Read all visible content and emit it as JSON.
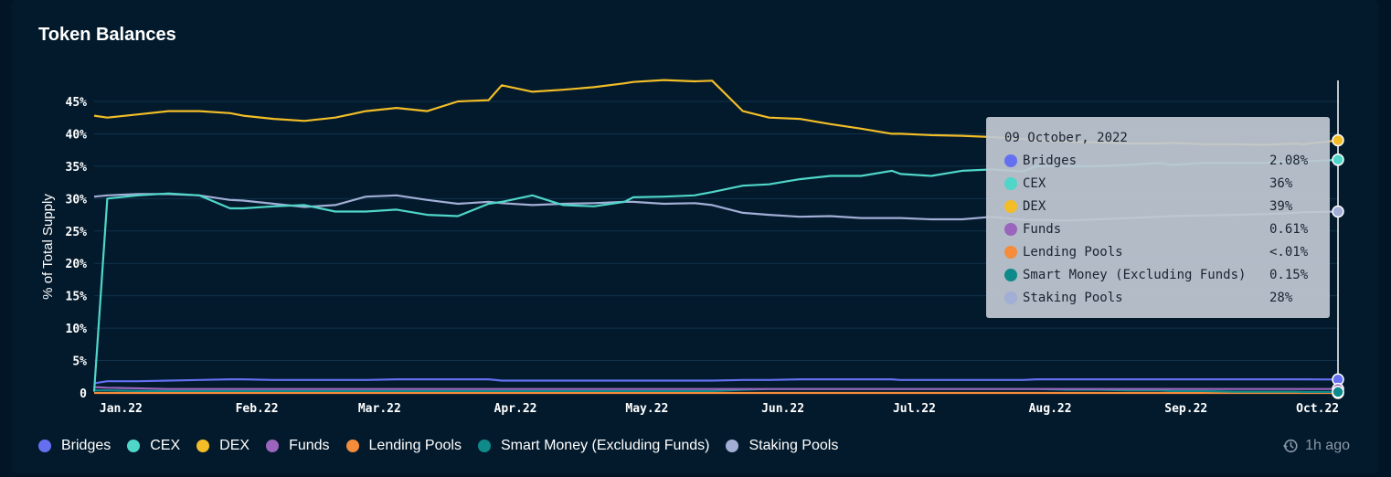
{
  "card": {
    "title": "Token Balances"
  },
  "footer": {
    "updated": "1h ago"
  },
  "tooltip": {
    "date": "09 October, 2022",
    "rows": [
      {
        "name": "Bridges",
        "value": "2.08%",
        "color": "#6470f0"
      },
      {
        "name": "CEX",
        "value": "36%",
        "color": "#4fd6c8"
      },
      {
        "name": "DEX",
        "value": "39%",
        "color": "#f2bd27"
      },
      {
        "name": "Funds",
        "value": "0.61%",
        "color": "#9b64bd"
      },
      {
        "name": "Lending Pools",
        "value": "<.01%",
        "color": "#f48c3c"
      },
      {
        "name": "Smart Money (Excluding Funds)",
        "value": "0.15%",
        "color": "#0e8a8a"
      },
      {
        "name": "Staking Pools",
        "value": "28%",
        "color": "#a2aed6"
      }
    ]
  },
  "chart_data": {
    "type": "line",
    "title": "Token Balances",
    "ylabel": "% of Total Supply",
    "xlabel": "",
    "ylim": [
      0,
      47
    ],
    "y_ticks": [
      "0",
      "5%",
      "10%",
      "15%",
      "20%",
      "25%",
      "30%",
      "35%",
      "40%",
      "45%"
    ],
    "y_tick_values": [
      0,
      5,
      10,
      15,
      20,
      25,
      30,
      35,
      40,
      45
    ],
    "x_ticks": [
      "Jan.22",
      "Feb.22",
      "Mar.22",
      "Apr.22",
      "May.22",
      "Jun.22",
      "Jul.22",
      "Aug.22",
      "Sep.22",
      "Oct.22"
    ],
    "x_tick_values": [
      0,
      31,
      59,
      90,
      120,
      151,
      181,
      212,
      243,
      273
    ],
    "x_range_days": [
      -3,
      281
    ],
    "grid": true,
    "legend_position": "bottom-left",
    "x_days": [
      -3,
      0,
      7,
      14,
      21,
      28,
      31,
      38,
      45,
      52,
      59,
      66,
      73,
      80,
      87,
      90,
      97,
      104,
      111,
      118,
      120,
      127,
      134,
      138,
      145,
      151,
      158,
      165,
      172,
      179,
      181,
      188,
      195,
      202,
      209,
      212,
      219,
      226,
      233,
      240,
      243,
      250,
      257,
      264,
      271,
      273,
      281
    ],
    "series": [
      {
        "name": "Bridges",
        "color": "#6470f0",
        "values": [
          1.5,
          1.8,
          1.8,
          1.9,
          2.0,
          2.1,
          2.1,
          2.0,
          2.0,
          2.0,
          2.0,
          2.1,
          2.1,
          2.1,
          2.1,
          1.9,
          1.9,
          1.9,
          1.9,
          1.9,
          1.9,
          1.9,
          1.9,
          1.9,
          2.0,
          2.0,
          2.1,
          2.1,
          2.1,
          2.1,
          2.0,
          2.0,
          2.0,
          2.0,
          2.0,
          2.1,
          2.1,
          2.1,
          2.1,
          2.1,
          2.1,
          2.1,
          2.1,
          2.1,
          2.1,
          2.1,
          2.08
        ]
      },
      {
        "name": "CEX",
        "color": "#4fd6c8",
        "values": [
          0.2,
          30.0,
          30.5,
          30.8,
          30.5,
          28.5,
          28.5,
          28.8,
          29.0,
          28.0,
          28.0,
          28.3,
          27.5,
          27.3,
          29.2,
          29.5,
          30.5,
          29.0,
          28.8,
          29.5,
          30.2,
          30.3,
          30.5,
          31.0,
          32.0,
          32.2,
          33.0,
          33.5,
          33.5,
          34.3,
          33.8,
          33.5,
          34.3,
          34.5,
          34.2,
          35.0,
          35.0,
          35.0,
          35.2,
          35.5,
          35.2,
          35.5,
          35.5,
          35.5,
          35.8,
          35.7,
          36.0
        ]
      },
      {
        "name": "DEX",
        "color": "#f2bd27",
        "values": [
          42.8,
          42.5,
          43.0,
          43.5,
          43.5,
          43.2,
          42.8,
          42.3,
          42.0,
          42.5,
          43.5,
          44.0,
          43.5,
          45.0,
          45.2,
          47.5,
          46.5,
          46.8,
          47.2,
          47.8,
          48.0,
          48.3,
          48.1,
          48.2,
          43.5,
          42.5,
          42.3,
          41.5,
          40.8,
          40.0,
          40.0,
          39.8,
          39.7,
          39.5,
          39.2,
          39.0,
          38.8,
          38.7,
          38.5,
          38.5,
          38.6,
          38.4,
          38.4,
          38.3,
          38.5,
          38.4,
          39.0
        ]
      },
      {
        "name": "Funds",
        "color": "#9b64bd",
        "values": [
          0.9,
          0.8,
          0.7,
          0.6,
          0.6,
          0.6,
          0.6,
          0.6,
          0.6,
          0.6,
          0.6,
          0.6,
          0.6,
          0.6,
          0.6,
          0.6,
          0.6,
          0.6,
          0.6,
          0.6,
          0.6,
          0.6,
          0.6,
          0.6,
          0.6,
          0.6,
          0.6,
          0.6,
          0.6,
          0.6,
          0.6,
          0.6,
          0.6,
          0.6,
          0.6,
          0.6,
          0.6,
          0.6,
          0.6,
          0.6,
          0.6,
          0.6,
          0.6,
          0.6,
          0.6,
          0.6,
          0.61
        ]
      },
      {
        "name": "Lending Pools",
        "color": "#f48c3c",
        "values": [
          0.0,
          0.0,
          0.0,
          0.0,
          0.0,
          0.0,
          0.0,
          0.0,
          0.0,
          0.0,
          0.0,
          0.0,
          0.0,
          0.0,
          0.0,
          0.0,
          0.0,
          0.0,
          0.0,
          0.0,
          0.0,
          0.0,
          0.0,
          0.0,
          0.0,
          0.0,
          0.0,
          0.0,
          0.0,
          0.0,
          0.0,
          0.0,
          0.0,
          0.0,
          0.0,
          0.0,
          0.0,
          0.0,
          0.0,
          0.0,
          0.0,
          0.0,
          0.0,
          0.0,
          0.0,
          0.0,
          0.0
        ]
      },
      {
        "name": "Smart Money (Excluding Funds)",
        "color": "#0e8a8a",
        "values": [
          0.4,
          0.4,
          0.3,
          0.3,
          0.3,
          0.3,
          0.3,
          0.3,
          0.3,
          0.3,
          0.3,
          0.3,
          0.3,
          0.3,
          0.3,
          0.3,
          0.3,
          0.3,
          0.3,
          0.3,
          0.3,
          0.3,
          0.3,
          0.3,
          0.5,
          0.6,
          0.6,
          0.6,
          0.6,
          0.6,
          0.6,
          0.6,
          0.6,
          0.6,
          0.6,
          0.6,
          0.5,
          0.5,
          0.4,
          0.4,
          0.3,
          0.3,
          0.2,
          0.2,
          0.2,
          0.15,
          0.15
        ]
      },
      {
        "name": "Staking Pools",
        "color": "#a2aed6",
        "values": [
          30.3,
          30.5,
          30.7,
          30.7,
          30.5,
          29.8,
          29.7,
          29.2,
          28.7,
          29.0,
          30.3,
          30.5,
          29.8,
          29.2,
          29.5,
          29.3,
          29.0,
          29.2,
          29.3,
          29.5,
          29.5,
          29.2,
          29.3,
          29.0,
          27.8,
          27.5,
          27.2,
          27.3,
          27.0,
          27.0,
          27.0,
          26.8,
          26.8,
          27.2,
          26.7,
          26.7,
          26.6,
          26.8,
          27.0,
          27.2,
          27.3,
          27.4,
          27.5,
          27.6,
          27.8,
          27.9,
          28.0
        ]
      }
    ]
  }
}
